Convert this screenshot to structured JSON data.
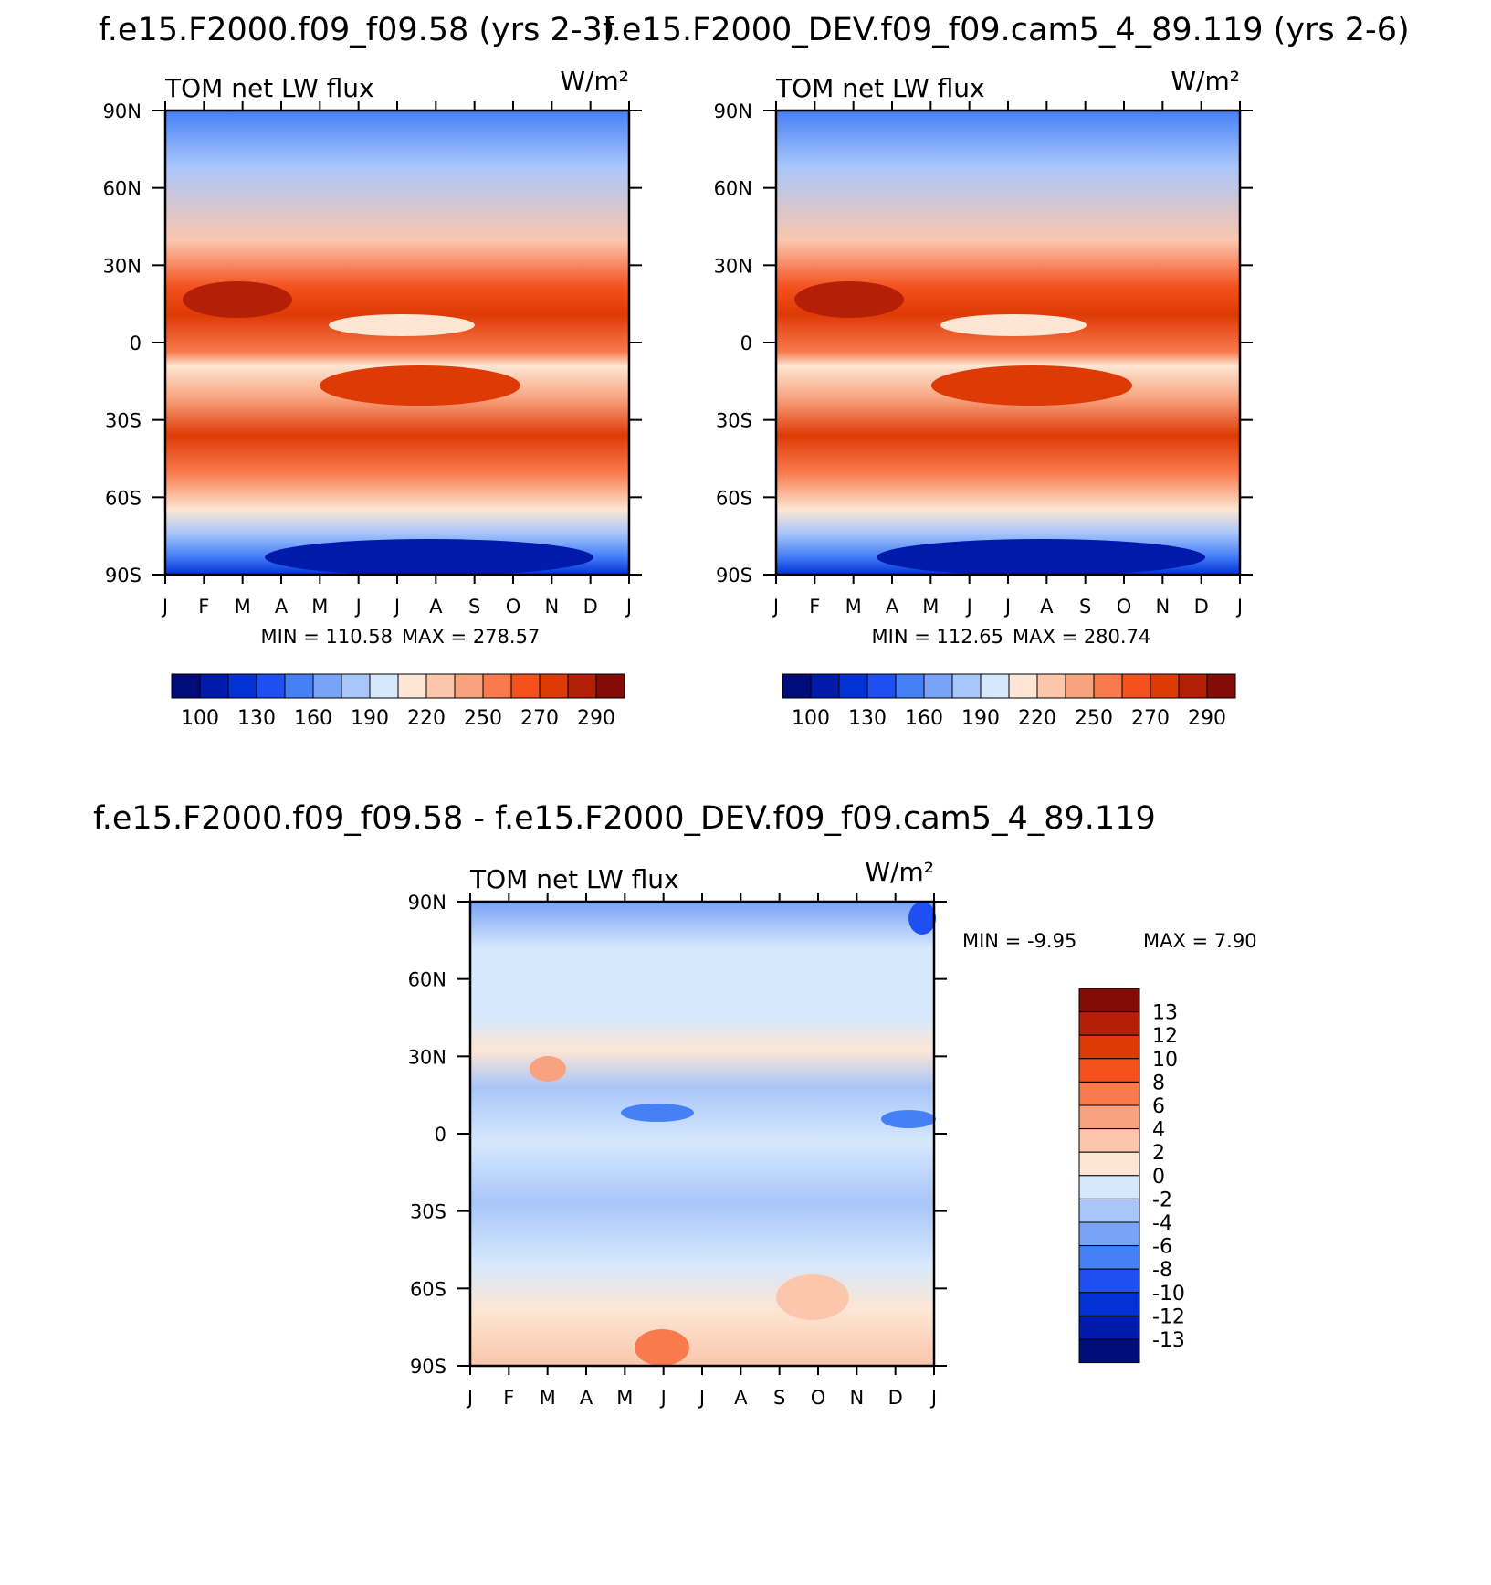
{
  "figure": {
    "left_title": "f.e15.F2000.f09_f09.58 (yrs 2-3)",
    "right_title": "f.e15.F2000_DEV.f09_f09.cam5_4_89.119 (yrs 2-6)",
    "diff_title": "f.e15.F2000.f09_f09.58 - f.e15.F2000_DEV.f09_f09.cam5_4_89.119"
  },
  "chart_data": [
    {
      "id": "panel-a",
      "type": "heatmap",
      "subtitle": "TOM net LW flux",
      "units": "W/m²",
      "xlabel": "",
      "ylabel": "",
      "x_ticks": [
        "J",
        "F",
        "M",
        "A",
        "M",
        "J",
        "J",
        "A",
        "S",
        "O",
        "N",
        "D",
        "J"
      ],
      "y_ticks": [
        "90N",
        "60N",
        "30N",
        "0",
        "30S",
        "60S",
        "90S"
      ],
      "min_label": "MIN = 110.58",
      "max_label": "MAX = 278.57",
      "colorbar_labels": [
        "100",
        "130",
        "160",
        "190",
        "220",
        "250",
        "270",
        "290"
      ],
      "colorbar_orientation": "horizontal"
    },
    {
      "id": "panel-b",
      "type": "heatmap",
      "subtitle": "TOM net LW flux",
      "units": "W/m²",
      "xlabel": "",
      "ylabel": "",
      "x_ticks": [
        "J",
        "F",
        "M",
        "A",
        "M",
        "J",
        "J",
        "A",
        "S",
        "O",
        "N",
        "D",
        "J"
      ],
      "y_ticks": [
        "90N",
        "60N",
        "30N",
        "0",
        "30S",
        "60S",
        "90S"
      ],
      "min_label": "MIN = 112.65",
      "max_label": "MAX = 280.74",
      "colorbar_labels": [
        "100",
        "130",
        "160",
        "190",
        "220",
        "250",
        "270",
        "290"
      ],
      "colorbar_orientation": "horizontal"
    },
    {
      "id": "panel-diff",
      "type": "heatmap",
      "subtitle": "TOM net LW flux",
      "units": "W/m²",
      "xlabel": "",
      "ylabel": "",
      "x_ticks": [
        "J",
        "F",
        "M",
        "A",
        "M",
        "J",
        "J",
        "A",
        "S",
        "O",
        "N",
        "D",
        "J"
      ],
      "y_ticks": [
        "90N",
        "60N",
        "30N",
        "0",
        "30S",
        "60S",
        "90S"
      ],
      "min_label": "MIN = -9.95",
      "max_label": "MAX = 7.90",
      "colorbar_labels": [
        "13",
        "12",
        "10",
        "8",
        "6",
        "4",
        "2",
        "0",
        "-2",
        "-4",
        "-6",
        "-8",
        "-10",
        "-12",
        "-13"
      ],
      "colorbar_orientation": "vertical"
    }
  ],
  "colors": {
    "scale": [
      "#000c7a",
      "#001aab",
      "#0232d6",
      "#1e4ff2",
      "#4680f7",
      "#7aa2f7",
      "#a9c6fa",
      "#d5e8fc",
      "#fde6d3",
      "#fbc6ac",
      "#f9a37e",
      "#f97a4d",
      "#f4511e",
      "#de3a06",
      "#b51f08",
      "#830c07"
    ],
    "diff_scale": [
      "#000c7a",
      "#001aab",
      "#0232d6",
      "#1e4ff2",
      "#4680f7",
      "#7aa2f7",
      "#a9c6fa",
      "#d5e8fc",
      "#fde6d3",
      "#fbc6ac",
      "#f9a37e",
      "#f97a4d",
      "#f4511e",
      "#de3a06",
      "#b51f08",
      "#830c07"
    ]
  }
}
